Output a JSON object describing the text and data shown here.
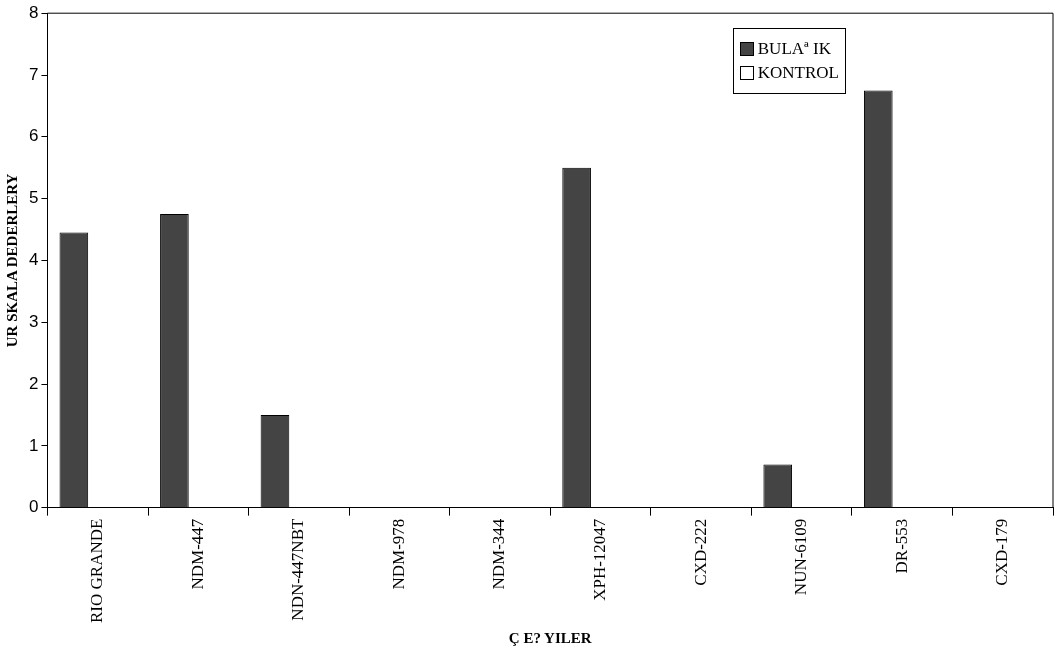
{
  "chart_data": {
    "type": "bar",
    "xlabel": "Ç E? YILER",
    "ylabel": "UR SKALA DEDERLERY",
    "categories": [
      "RIO GRANDE",
      "NDM-447",
      "NDN-447NBT",
      "NDM-978",
      "NDM-344",
      "XPH-12047",
      "CXD-222",
      "NUN-6109",
      "DR-553",
      "CXD-179"
    ],
    "series": [
      {
        "name": "BULAª IK",
        "color": "#444444",
        "values": [
          4.45,
          4.75,
          1.5,
          0,
          0,
          5.5,
          0,
          0.7,
          6.75,
          0
        ]
      },
      {
        "name": "KONTROL",
        "color": "#ffffff",
        "values": [
          0,
          0,
          0,
          0,
          0,
          0,
          0,
          0,
          0,
          0
        ]
      }
    ],
    "ylim": [
      0,
      8
    ],
    "yticks": [
      0,
      1,
      2,
      3,
      4,
      5,
      6,
      7,
      8
    ],
    "grid": false,
    "legend": "top right"
  }
}
